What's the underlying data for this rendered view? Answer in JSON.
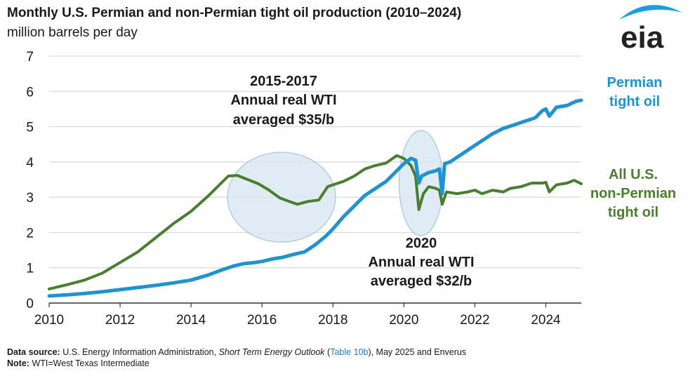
{
  "header": {
    "title": "Monthly U.S. Permian and non-Permian tight oil production (2010–2024)",
    "subtitle": "million barrels per day",
    "logo_text": "eia"
  },
  "footer": {
    "source_label": "Data source:",
    "source_text_1": "U.S. Energy Information Administration,",
    "source_italic": "Short Term Energy Outlook",
    "source_paren_open": "(",
    "source_link": "Table 10b",
    "source_text_2": "), May 2025 and Enverus",
    "note_label": "Note:",
    "note_text": "WTI=West Texas Intermediate"
  },
  "annotations": {
    "a2015_line1": "2015-2017",
    "a2015_line2": "Annual real WTI",
    "a2015_line3": "averaged $35/b",
    "a2020_line1": "2020",
    "a2020_line2": "Annual real WTI",
    "a2020_line3": "averaged $32/b"
  },
  "colors": {
    "permian": "#1f93d1",
    "non_permian": "#4b7d2e",
    "ellipse_fill": "#dbe9f2",
    "ellipse_stroke": "#a8c6db",
    "grid": "#d9d9d9"
  },
  "chart_data": {
    "type": "line",
    "title": "Monthly U.S. Permian and non-Permian tight oil production (2010–2024)",
    "ylabel": "million barrels per day",
    "xlabel": "",
    "xlim": [
      2010,
      2025
    ],
    "ylim": [
      0,
      7
    ],
    "x_ticks": [
      2010,
      2012,
      2014,
      2016,
      2018,
      2020,
      2022,
      2024
    ],
    "y_ticks": [
      0,
      1,
      2,
      3,
      4,
      5,
      6,
      7
    ],
    "grid": "horizontal",
    "series": [
      {
        "name": "Permian tight oil",
        "label_lines": [
          "Permian",
          "tight oil"
        ],
        "points": [
          [
            2010.0,
            0.2
          ],
          [
            2010.5,
            0.23
          ],
          [
            2011.0,
            0.27
          ],
          [
            2011.5,
            0.32
          ],
          [
            2012.0,
            0.38
          ],
          [
            2012.5,
            0.44
          ],
          [
            2013.0,
            0.5
          ],
          [
            2013.5,
            0.57
          ],
          [
            2014.0,
            0.65
          ],
          [
            2014.5,
            0.8
          ],
          [
            2014.9,
            0.95
          ],
          [
            2015.2,
            1.05
          ],
          [
            2015.5,
            1.12
          ],
          [
            2015.8,
            1.15
          ],
          [
            2016.0,
            1.18
          ],
          [
            2016.3,
            1.25
          ],
          [
            2016.6,
            1.3
          ],
          [
            2016.9,
            1.38
          ],
          [
            2017.2,
            1.45
          ],
          [
            2017.5,
            1.65
          ],
          [
            2017.8,
            1.9
          ],
          [
            2018.0,
            2.1
          ],
          [
            2018.3,
            2.45
          ],
          [
            2018.6,
            2.75
          ],
          [
            2018.9,
            3.05
          ],
          [
            2019.2,
            3.25
          ],
          [
            2019.5,
            3.45
          ],
          [
            2019.8,
            3.75
          ],
          [
            2020.0,
            3.95
          ],
          [
            2020.2,
            4.1
          ],
          [
            2020.33,
            4.05
          ],
          [
            2020.42,
            3.4
          ],
          [
            2020.5,
            3.6
          ],
          [
            2020.7,
            3.7
          ],
          [
            2020.9,
            3.75
          ],
          [
            2021.0,
            3.8
          ],
          [
            2021.08,
            3.1
          ],
          [
            2021.15,
            3.95
          ],
          [
            2021.3,
            4.0
          ],
          [
            2021.6,
            4.2
          ],
          [
            2021.9,
            4.4
          ],
          [
            2022.2,
            4.6
          ],
          [
            2022.5,
            4.8
          ],
          [
            2022.8,
            4.95
          ],
          [
            2023.1,
            5.05
          ],
          [
            2023.4,
            5.15
          ],
          [
            2023.7,
            5.25
          ],
          [
            2023.9,
            5.45
          ],
          [
            2024.0,
            5.5
          ],
          [
            2024.1,
            5.3
          ],
          [
            2024.3,
            5.55
          ],
          [
            2024.6,
            5.6
          ],
          [
            2024.85,
            5.72
          ],
          [
            2025.0,
            5.75
          ]
        ]
      },
      {
        "name": "All U.S. non-Permian tight oil",
        "label_lines": [
          "All U.S.",
          "non-Permian",
          "tight oil"
        ],
        "points": [
          [
            2010.0,
            0.4
          ],
          [
            2010.5,
            0.52
          ],
          [
            2011.0,
            0.65
          ],
          [
            2011.5,
            0.85
          ],
          [
            2012.0,
            1.15
          ],
          [
            2012.5,
            1.45
          ],
          [
            2013.0,
            1.85
          ],
          [
            2013.5,
            2.25
          ],
          [
            2014.0,
            2.6
          ],
          [
            2014.5,
            3.05
          ],
          [
            2014.9,
            3.45
          ],
          [
            2015.05,
            3.6
          ],
          [
            2015.3,
            3.62
          ],
          [
            2015.6,
            3.5
          ],
          [
            2015.9,
            3.38
          ],
          [
            2016.2,
            3.2
          ],
          [
            2016.5,
            2.98
          ],
          [
            2016.8,
            2.87
          ],
          [
            2017.0,
            2.8
          ],
          [
            2017.3,
            2.88
          ],
          [
            2017.6,
            2.92
          ],
          [
            2017.85,
            3.3
          ],
          [
            2018.0,
            3.35
          ],
          [
            2018.3,
            3.45
          ],
          [
            2018.6,
            3.6
          ],
          [
            2018.9,
            3.8
          ],
          [
            2019.2,
            3.9
          ],
          [
            2019.5,
            3.97
          ],
          [
            2019.8,
            4.18
          ],
          [
            2020.0,
            4.1
          ],
          [
            2020.2,
            3.9
          ],
          [
            2020.33,
            3.6
          ],
          [
            2020.42,
            2.65
          ],
          [
            2020.55,
            3.1
          ],
          [
            2020.7,
            3.3
          ],
          [
            2020.9,
            3.25
          ],
          [
            2021.0,
            3.2
          ],
          [
            2021.08,
            2.8
          ],
          [
            2021.2,
            3.15
          ],
          [
            2021.5,
            3.1
          ],
          [
            2021.8,
            3.15
          ],
          [
            2022.0,
            3.2
          ],
          [
            2022.2,
            3.1
          ],
          [
            2022.5,
            3.2
          ],
          [
            2022.8,
            3.15
          ],
          [
            2023.0,
            3.25
          ],
          [
            2023.3,
            3.3
          ],
          [
            2023.6,
            3.4
          ],
          [
            2023.9,
            3.4
          ],
          [
            2024.0,
            3.42
          ],
          [
            2024.1,
            3.15
          ],
          [
            2024.3,
            3.35
          ],
          [
            2024.6,
            3.4
          ],
          [
            2024.8,
            3.48
          ],
          [
            2025.0,
            3.38
          ]
        ]
      }
    ]
  }
}
